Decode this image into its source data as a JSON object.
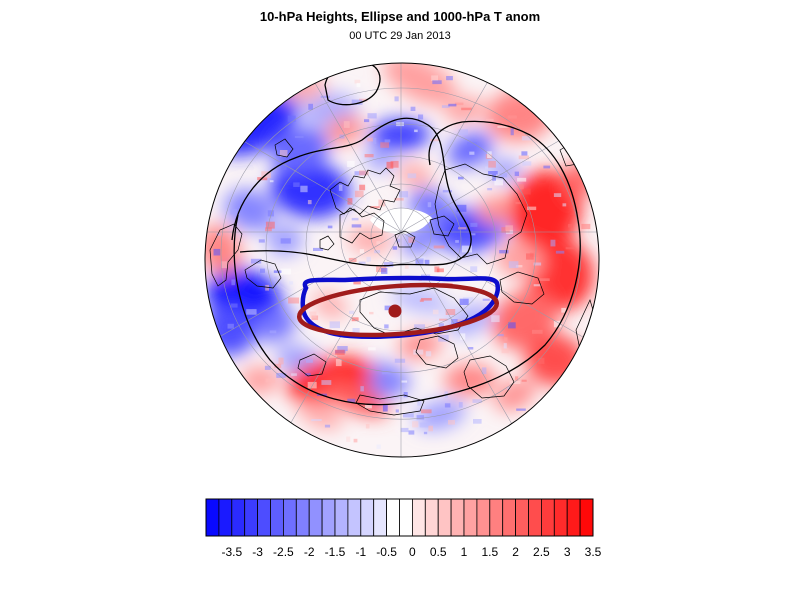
{
  "title": "10-hPa Heights, Ellipse and 1000-hPa T anom",
  "subtitle": "00 UTC 29 Jan 2013",
  "colors": {
    "neg_strong": "#0000ff",
    "neg_weak": "#eeeeff",
    "neutral": "#ffffff",
    "pos_weak": "#ffeeee",
    "pos_strong": "#ff0000",
    "ellipse_blue": "#0c0ccc",
    "ellipse_red": "#a01c1c",
    "contour": "#000000",
    "coastline": "#000000",
    "graticule": "#9a9aa8"
  },
  "colorbar": {
    "levels": [
      -3.75,
      -3.5,
      -3.25,
      -3,
      -2.75,
      -2.5,
      -2.25,
      -2,
      -1.75,
      -1.5,
      -1.25,
      -1,
      -0.75,
      -0.5,
      -0.25,
      0,
      0.25,
      0.5,
      0.75,
      1,
      1.25,
      1.5,
      1.75,
      2,
      2.25,
      2.5,
      2.75,
      3,
      3.25,
      3.5,
      3.75
    ],
    "tick_labels": [
      "-3.5",
      "-3",
      "-2.5",
      "-2",
      "-1.5",
      "-1",
      "-0.5",
      "0",
      "0.5",
      "1",
      "1.5",
      "2",
      "2.5",
      "3",
      "3.5"
    ]
  }
}
